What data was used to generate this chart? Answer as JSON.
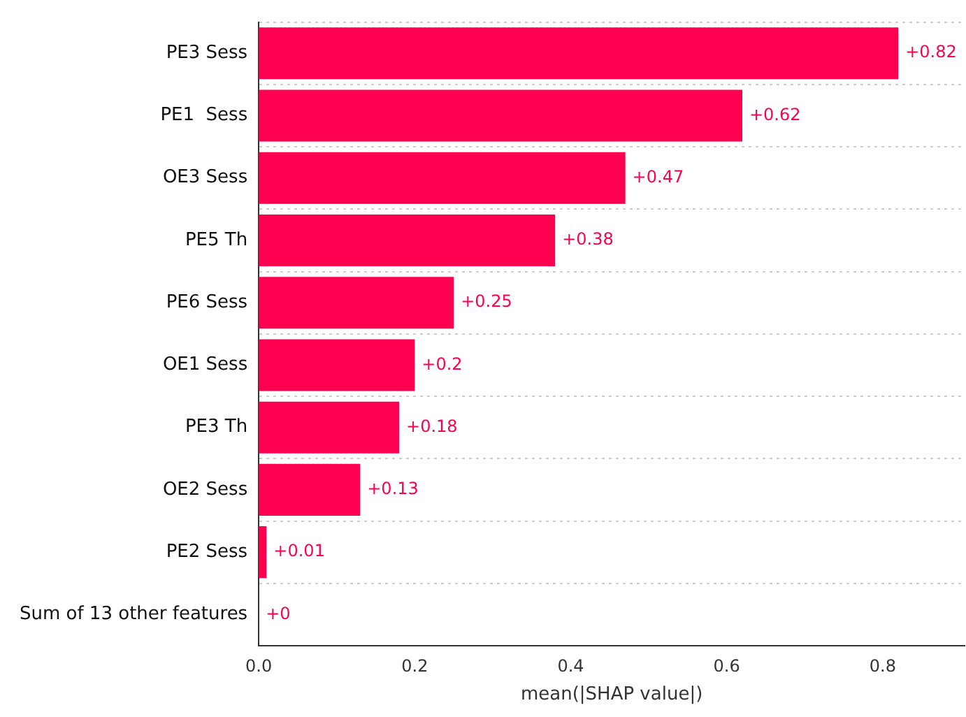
{
  "chart_data": {
    "type": "bar",
    "orientation": "horizontal",
    "xlabel": "mean(|SHAP value|)",
    "categories": [
      "PE3 Sess",
      "PE1  Sess",
      "OE3 Sess",
      "PE5 Th",
      "PE6 Sess",
      "OE1 Sess",
      "PE3 Th",
      "OE2 Sess",
      "PE2 Sess",
      "Sum of 13 other features"
    ],
    "values": [
      0.82,
      0.62,
      0.47,
      0.38,
      0.25,
      0.2,
      0.18,
      0.13,
      0.01,
      0
    ],
    "value_labels": [
      "+0.82",
      "+0.62",
      "+0.47",
      "+0.38",
      "+0.25",
      "+0.2",
      "+0.18",
      "+0.13",
      "+0.01",
      "+0"
    ],
    "color": "#ff0051",
    "xlim": [
      0,
      0.905
    ],
    "xticks": [
      {
        "value": 0,
        "label": "0.0"
      },
      {
        "value": 0.2,
        "label": "0.2"
      },
      {
        "value": 0.4,
        "label": "0.4"
      },
      {
        "value": 0.6,
        "label": "0.6"
      },
      {
        "value": 0.8,
        "label": "0.8"
      }
    ],
    "grid": "y",
    "legend": false
  }
}
